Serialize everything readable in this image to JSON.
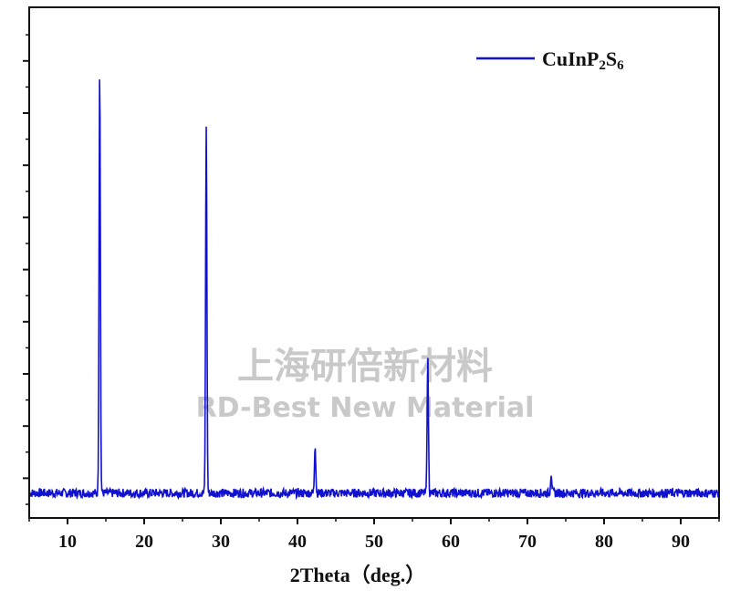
{
  "watermark": {
    "line1": "上海研倍新材料",
    "line2": "RD-Best New Material"
  },
  "chart_data": {
    "type": "line",
    "title": "",
    "xlabel": "2Theta（deg.）",
    "ylabel": "",
    "xlim": [
      5,
      95
    ],
    "ylim": [
      0,
      100
    ],
    "x_ticks": [
      10,
      20,
      30,
      40,
      50,
      60,
      70,
      80,
      90
    ],
    "x_tick_labels": [
      "10",
      "20",
      "30",
      "40",
      "50",
      "60",
      "70",
      "80",
      "90"
    ],
    "y_ticks_labeled": false,
    "legend": {
      "position": "top-right"
    },
    "color": "#1010d0",
    "series": [
      {
        "name": "CuInP2S6",
        "legend_main": "CuInP",
        "legend_sub1": "2",
        "legend_mid": "S",
        "legend_sub2": "6",
        "baseline": 2.5,
        "noise": 1.0,
        "peaks": [
          {
            "x": 14.2,
            "y": 95.0
          },
          {
            "x": 28.1,
            "y": 82.0
          },
          {
            "x": 42.3,
            "y": 11.0
          },
          {
            "x": 57.0,
            "y": 30.0
          },
          {
            "x": 73.1,
            "y": 4.5
          }
        ]
      }
    ]
  }
}
